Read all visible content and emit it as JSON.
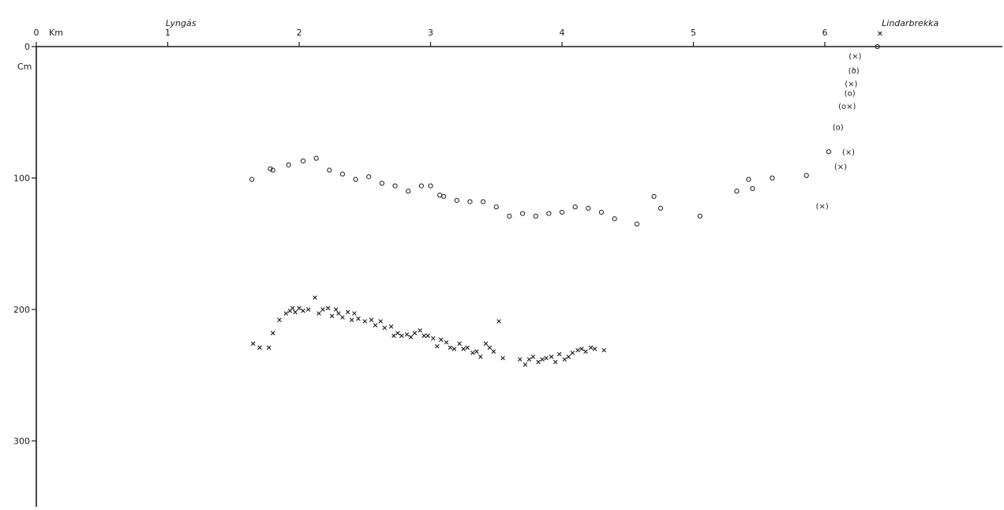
{
  "chart_data": {
    "type": "scatter",
    "xunit": "Km",
    "yunit": "Cm",
    "xlim": [
      0,
      7.15
    ],
    "ylim": [
      0,
      345
    ],
    "x_ticks": [
      {
        "value": 0,
        "label": "0"
      },
      {
        "value": 1,
        "label": "1"
      },
      {
        "value": 2,
        "label": "2"
      },
      {
        "value": 3,
        "label": "3"
      },
      {
        "value": 4,
        "label": "4"
      },
      {
        "value": 5,
        "label": "5"
      },
      {
        "value": 6,
        "label": "6"
      }
    ],
    "y_ticks": [
      {
        "value": 0,
        "label": "0"
      },
      {
        "value": 100,
        "label": "100"
      },
      {
        "value": 200,
        "label": "200"
      },
      {
        "value": 300,
        "label": "300"
      }
    ],
    "place_labels": [
      {
        "x": 1.1,
        "label": "Lyngás"
      },
      {
        "x": 6.65,
        "label": "Lindarbrekka"
      }
    ],
    "series": [
      {
        "marker": "circle",
        "points": [
          [
            1.64,
            101
          ],
          [
            1.78,
            93
          ],
          [
            1.8,
            94
          ],
          [
            1.92,
            90
          ],
          [
            2.03,
            87
          ],
          [
            2.13,
            85
          ],
          [
            2.23,
            94
          ],
          [
            2.33,
            97
          ],
          [
            2.43,
            101
          ],
          [
            2.53,
            99
          ],
          [
            2.63,
            104
          ],
          [
            2.73,
            106
          ],
          [
            2.83,
            110
          ],
          [
            2.93,
            106
          ],
          [
            3.0,
            106
          ],
          [
            3.07,
            113
          ],
          [
            3.1,
            114
          ],
          [
            3.2,
            117
          ],
          [
            3.3,
            118
          ],
          [
            3.4,
            118
          ],
          [
            3.5,
            122
          ],
          [
            3.6,
            129
          ],
          [
            3.7,
            127
          ],
          [
            3.8,
            129
          ],
          [
            3.9,
            127
          ],
          [
            4.0,
            126
          ],
          [
            4.1,
            122
          ],
          [
            4.2,
            123
          ],
          [
            4.3,
            126
          ],
          [
            4.4,
            131
          ],
          [
            4.57,
            135
          ],
          [
            4.7,
            114
          ],
          [
            4.75,
            123
          ],
          [
            5.05,
            129
          ],
          [
            5.33,
            110
          ],
          [
            5.42,
            101
          ],
          [
            5.45,
            108
          ],
          [
            5.6,
            100
          ],
          [
            5.86,
            98
          ],
          [
            6.03,
            80
          ],
          [
            6.4,
            0
          ]
        ]
      },
      {
        "marker": "x",
        "points": [
          [
            1.65,
            226
          ],
          [
            1.7,
            229
          ],
          [
            1.77,
            229
          ],
          [
            1.8,
            218
          ],
          [
            1.85,
            208
          ],
          [
            1.9,
            203
          ],
          [
            1.93,
            201
          ],
          [
            1.95,
            199
          ],
          [
            1.97,
            202
          ],
          [
            2.0,
            199
          ],
          [
            2.03,
            201
          ],
          [
            2.07,
            200
          ],
          [
            2.12,
            191
          ],
          [
            2.15,
            203
          ],
          [
            2.18,
            200
          ],
          [
            2.22,
            199
          ],
          [
            2.25,
            205
          ],
          [
            2.28,
            200
          ],
          [
            2.3,
            203
          ],
          [
            2.33,
            206
          ],
          [
            2.37,
            202
          ],
          [
            2.4,
            208
          ],
          [
            2.42,
            203
          ],
          [
            2.45,
            207
          ],
          [
            2.5,
            209
          ],
          [
            2.55,
            208
          ],
          [
            2.58,
            212
          ],
          [
            2.62,
            209
          ],
          [
            2.65,
            214
          ],
          [
            2.7,
            213
          ],
          [
            2.72,
            220
          ],
          [
            2.75,
            218
          ],
          [
            2.78,
            220
          ],
          [
            2.82,
            219
          ],
          [
            2.85,
            221
          ],
          [
            2.88,
            218
          ],
          [
            2.92,
            216
          ],
          [
            2.95,
            220
          ],
          [
            2.98,
            220
          ],
          [
            3.02,
            222
          ],
          [
            3.05,
            228
          ],
          [
            3.08,
            223
          ],
          [
            3.12,
            225
          ],
          [
            3.15,
            229
          ],
          [
            3.18,
            230
          ],
          [
            3.22,
            226
          ],
          [
            3.25,
            230
          ],
          [
            3.28,
            229
          ],
          [
            3.32,
            233
          ],
          [
            3.35,
            232
          ],
          [
            3.38,
            236
          ],
          [
            3.42,
            226
          ],
          [
            3.45,
            229
          ],
          [
            3.48,
            232
          ],
          [
            3.52,
            209
          ],
          [
            3.55,
            237
          ],
          [
            3.68,
            238
          ],
          [
            3.72,
            242
          ],
          [
            3.75,
            238
          ],
          [
            3.78,
            236
          ],
          [
            3.82,
            240
          ],
          [
            3.85,
            238
          ],
          [
            3.88,
            237
          ],
          [
            3.92,
            236
          ],
          [
            3.95,
            240
          ],
          [
            3.98,
            234
          ],
          [
            4.02,
            238
          ],
          [
            4.05,
            236
          ],
          [
            4.08,
            233
          ],
          [
            4.12,
            231
          ],
          [
            4.15,
            230
          ],
          [
            4.18,
            232
          ],
          [
            4.22,
            229
          ],
          [
            4.25,
            230
          ],
          [
            4.32,
            231
          ],
          [
            6.42,
            -10
          ]
        ]
      }
    ],
    "bracketed_points": [
      {
        "x": 6.23,
        "y": 7,
        "label": "(×)"
      },
      {
        "x": 6.22,
        "y": 18,
        "label": "(ծ)"
      },
      {
        "x": 6.2,
        "y": 28,
        "label": "(×)"
      },
      {
        "x": 6.19,
        "y": 35,
        "label": "(o)"
      },
      {
        "x": 6.17,
        "y": 45,
        "label": "(o×)"
      },
      {
        "x": 6.1,
        "y": 61,
        "label": "(o)"
      },
      {
        "x": 6.18,
        "y": 80,
        "label": "(×)"
      },
      {
        "x": 6.12,
        "y": 91,
        "label": "(×)"
      },
      {
        "x": 5.98,
        "y": 121,
        "label": "(×)"
      }
    ]
  }
}
